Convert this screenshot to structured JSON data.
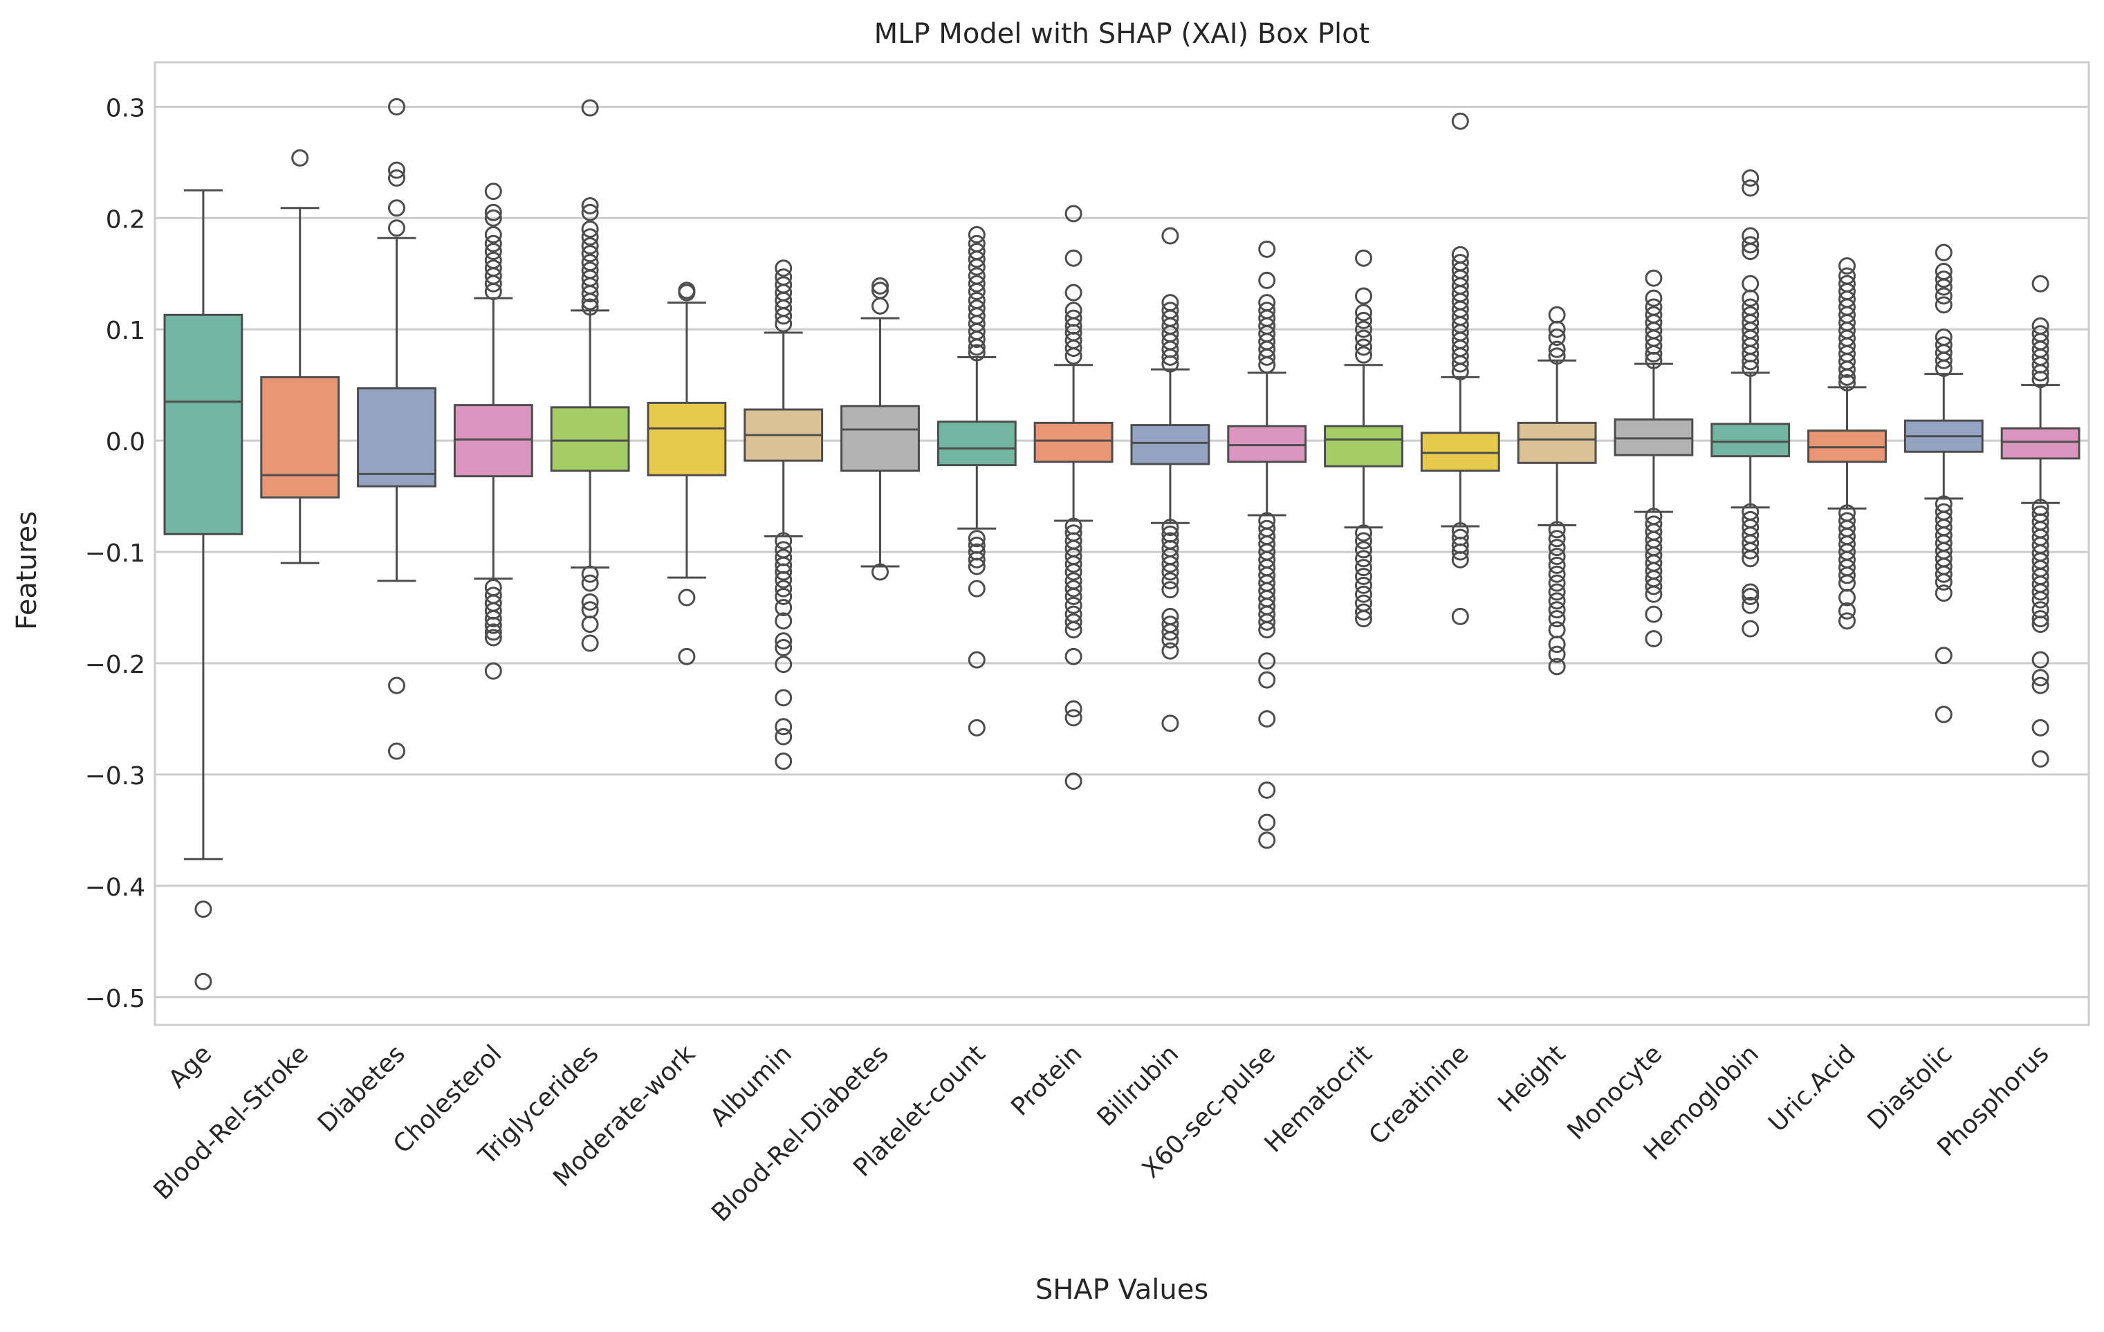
{
  "chart_data": {
    "type": "box",
    "title": "MLP Model with SHAP (XAI) Box Plot",
    "xlabel": "SHAP Values",
    "ylabel": "Features",
    "ylim": [
      -0.525,
      0.34
    ],
    "yticks": [
      0.3,
      0.2,
      0.1,
      0.0,
      -0.1,
      -0.2,
      -0.3,
      -0.4,
      -0.5
    ],
    "ytick_labels": [
      "0.3",
      "0.2",
      "0.1",
      "0.0",
      "−0.1",
      "−0.2",
      "−0.3",
      "−0.4",
      "−0.5"
    ],
    "grid": true,
    "legend": "none",
    "categories": [
      "Age",
      "Blood-Rel-Stroke",
      "Diabetes",
      "Cholesterol",
      "Triglycerides",
      "Moderate-work",
      "Albumin",
      "Blood-Rel-Diabetes",
      "Platelet-count",
      "Protein",
      "Bilirubin",
      "X60-sec-pulse",
      "Hematocrit",
      "Creatinine",
      "Height",
      "Monocyte",
      "Hemoglobin",
      "Uric.Acid",
      "Diastolic",
      "Phosphorus"
    ],
    "colors": [
      "#72b6a1",
      "#e99675",
      "#95a3c3",
      "#db96c0",
      "#a4cc65",
      "#e7ca4b",
      "#dbc296",
      "#b3b3b3",
      "#72b6a1",
      "#e99675",
      "#95a3c3",
      "#db96c0",
      "#a4cc65",
      "#e7ca4b",
      "#dbc296",
      "#b3b3b3",
      "#72b6a1",
      "#e99675",
      "#95a3c3",
      "#db96c0"
    ],
    "boxes": [
      {
        "q1": -0.084,
        "median": 0.035,
        "q3": 0.113,
        "whisker_low": -0.376,
        "whisker_high": 0.225,
        "outliers": [
          -0.421,
          -0.486
        ]
      },
      {
        "q1": -0.051,
        "median": -0.031,
        "q3": 0.057,
        "whisker_low": -0.11,
        "whisker_high": 0.209,
        "outliers": [
          0.254
        ]
      },
      {
        "q1": -0.041,
        "median": -0.03,
        "q3": 0.047,
        "whisker_low": -0.126,
        "whisker_high": 0.182,
        "outliers": [
          0.3,
          0.243,
          0.236,
          0.209,
          0.191,
          -0.22,
          -0.279
        ]
      },
      {
        "q1": -0.032,
        "median": 0.001,
        "q3": 0.032,
        "whisker_low": -0.124,
        "whisker_high": 0.128,
        "outliers": [
          0.224,
          0.205,
          0.2,
          0.185,
          0.177,
          0.17,
          0.162,
          0.155,
          0.148,
          0.141,
          0.134,
          -0.132,
          -0.139,
          -0.146,
          -0.153,
          -0.16,
          -0.166,
          -0.172,
          -0.177,
          -0.207
        ]
      },
      {
        "q1": -0.027,
        "median": 0.0,
        "q3": 0.03,
        "whisker_low": -0.114,
        "whisker_high": 0.117,
        "outliers": [
          0.299,
          0.211,
          0.205,
          0.19,
          0.183,
          0.175,
          0.168,
          0.16,
          0.153,
          0.146,
          0.139,
          0.132,
          0.125,
          0.12,
          -0.12,
          -0.128,
          -0.145,
          -0.152,
          -0.165,
          -0.182
        ]
      },
      {
        "q1": -0.031,
        "median": 0.011,
        "q3": 0.034,
        "whisker_low": -0.123,
        "whisker_high": 0.124,
        "outliers": [
          0.135,
          0.133,
          -0.141,
          -0.194
        ]
      },
      {
        "q1": -0.018,
        "median": 0.005,
        "q3": 0.028,
        "whisker_low": -0.086,
        "whisker_high": 0.097,
        "outliers": [
          0.155,
          0.147,
          0.14,
          0.133,
          0.126,
          0.119,
          0.112,
          0.105,
          -0.09,
          -0.098,
          -0.105,
          -0.112,
          -0.118,
          -0.125,
          -0.133,
          -0.14,
          -0.15,
          -0.162,
          -0.18,
          -0.186,
          -0.201,
          -0.231,
          -0.257,
          -0.266,
          -0.288
        ]
      },
      {
        "q1": -0.027,
        "median": 0.01,
        "q3": 0.031,
        "whisker_low": -0.113,
        "whisker_high": 0.11,
        "outliers": [
          0.139,
          0.135,
          0.121,
          -0.118
        ]
      },
      {
        "q1": -0.022,
        "median": -0.007,
        "q3": 0.017,
        "whisker_low": -0.079,
        "whisker_high": 0.075,
        "outliers": [
          0.185,
          0.177,
          0.17,
          0.163,
          0.156,
          0.148,
          0.141,
          0.134,
          0.126,
          0.119,
          0.112,
          0.105,
          0.098,
          0.091,
          0.084,
          0.079,
          -0.088,
          -0.094,
          -0.1,
          -0.107,
          -0.113,
          -0.133,
          -0.197,
          -0.258
        ]
      },
      {
        "q1": -0.019,
        "median": 0.0,
        "q3": 0.016,
        "whisker_low": -0.072,
        "whisker_high": 0.068,
        "outliers": [
          0.204,
          0.164,
          0.133,
          0.117,
          0.11,
          0.103,
          0.097,
          0.09,
          0.083,
          0.076,
          -0.077,
          -0.083,
          -0.09,
          -0.097,
          -0.104,
          -0.111,
          -0.118,
          -0.126,
          -0.133,
          -0.14,
          -0.148,
          -0.156,
          -0.163,
          -0.17,
          -0.194,
          -0.241,
          -0.249,
          -0.306
        ]
      },
      {
        "q1": -0.021,
        "median": -0.002,
        "q3": 0.014,
        "whisker_low": -0.074,
        "whisker_high": 0.064,
        "outliers": [
          0.184,
          0.124,
          0.117,
          0.11,
          0.103,
          0.096,
          0.089,
          0.082,
          0.075,
          0.069,
          -0.078,
          -0.084,
          -0.09,
          -0.097,
          -0.104,
          -0.111,
          -0.118,
          -0.126,
          -0.134,
          -0.158,
          -0.165,
          -0.172,
          -0.179,
          -0.189,
          -0.254
        ]
      },
      {
        "q1": -0.019,
        "median": -0.004,
        "q3": 0.013,
        "whisker_low": -0.067,
        "whisker_high": 0.061,
        "outliers": [
          0.172,
          0.144,
          0.124,
          0.117,
          0.11,
          0.103,
          0.096,
          0.089,
          0.082,
          0.075,
          0.068,
          -0.072,
          -0.079,
          -0.086,
          -0.093,
          -0.1,
          -0.107,
          -0.114,
          -0.121,
          -0.128,
          -0.135,
          -0.142,
          -0.149,
          -0.156,
          -0.163,
          -0.17,
          -0.198,
          -0.215,
          -0.25,
          -0.314,
          -0.343,
          -0.359
        ]
      },
      {
        "q1": -0.023,
        "median": 0.001,
        "q3": 0.013,
        "whisker_low": -0.078,
        "whisker_high": 0.068,
        "outliers": [
          0.164,
          0.13,
          0.115,
          0.108,
          0.1,
          0.092,
          0.084,
          0.077,
          -0.083,
          -0.09,
          -0.098,
          -0.106,
          -0.114,
          -0.122,
          -0.13,
          -0.138,
          -0.146,
          -0.154,
          -0.16
        ]
      },
      {
        "q1": -0.027,
        "median": -0.011,
        "q3": 0.007,
        "whisker_low": -0.077,
        "whisker_high": 0.057,
        "outliers": [
          0.287,
          0.167,
          0.16,
          0.153,
          0.146,
          0.139,
          0.132,
          0.125,
          0.118,
          0.111,
          0.104,
          0.097,
          0.09,
          0.083,
          0.076,
          0.069,
          0.062,
          -0.081,
          -0.087,
          -0.094,
          -0.1,
          -0.107,
          -0.158
        ]
      },
      {
        "q1": -0.02,
        "median": 0.001,
        "q3": 0.016,
        "whisker_low": -0.076,
        "whisker_high": 0.072,
        "outliers": [
          0.113,
          0.1,
          0.093,
          0.082,
          0.076,
          -0.08,
          -0.088,
          -0.096,
          -0.104,
          -0.112,
          -0.12,
          -0.128,
          -0.136,
          -0.144,
          -0.152,
          -0.16,
          -0.17,
          -0.183,
          -0.192,
          -0.203
        ]
      },
      {
        "q1": -0.013,
        "median": 0.002,
        "q3": 0.019,
        "whisker_low": -0.064,
        "whisker_high": 0.069,
        "outliers": [
          0.146,
          0.128,
          0.12,
          0.113,
          0.106,
          0.099,
          0.092,
          0.085,
          0.078,
          0.072,
          -0.068,
          -0.075,
          -0.082,
          -0.089,
          -0.096,
          -0.103,
          -0.11,
          -0.117,
          -0.124,
          -0.131,
          -0.138,
          -0.156,
          -0.178
        ]
      },
      {
        "q1": -0.014,
        "median": -0.001,
        "q3": 0.015,
        "whisker_low": -0.06,
        "whisker_high": 0.061,
        "outliers": [
          0.236,
          0.227,
          0.184,
          0.176,
          0.17,
          0.141,
          0.128,
          0.12,
          0.113,
          0.106,
          0.099,
          0.092,
          0.085,
          0.078,
          0.071,
          0.065,
          -0.064,
          -0.071,
          -0.078,
          -0.085,
          -0.092,
          -0.099,
          -0.106,
          -0.136,
          -0.14,
          -0.148,
          -0.169
        ]
      },
      {
        "q1": -0.019,
        "median": -0.006,
        "q3": 0.009,
        "whisker_low": -0.061,
        "whisker_high": 0.048,
        "outliers": [
          0.157,
          0.148,
          0.141,
          0.134,
          0.127,
          0.12,
          0.113,
          0.106,
          0.099,
          0.092,
          0.085,
          0.078,
          0.071,
          0.064,
          0.057,
          0.052,
          -0.065,
          -0.072,
          -0.079,
          -0.086,
          -0.093,
          -0.1,
          -0.107,
          -0.114,
          -0.121,
          -0.128,
          -0.141,
          -0.153,
          -0.162
        ]
      },
      {
        "q1": -0.01,
        "median": 0.004,
        "q3": 0.018,
        "whisker_low": -0.052,
        "whisker_high": 0.06,
        "outliers": [
          0.169,
          0.152,
          0.145,
          0.138,
          0.13,
          0.122,
          0.093,
          0.086,
          0.079,
          0.072,
          0.065,
          -0.057,
          -0.064,
          -0.071,
          -0.078,
          -0.085,
          -0.092,
          -0.099,
          -0.106,
          -0.113,
          -0.12,
          -0.127,
          -0.137,
          -0.193,
          -0.246
        ]
      },
      {
        "q1": -0.016,
        "median": -0.001,
        "q3": 0.011,
        "whisker_low": -0.056,
        "whisker_high": 0.05,
        "outliers": [
          0.141,
          0.103,
          0.096,
          0.089,
          0.082,
          0.075,
          0.068,
          0.061,
          0.055,
          -0.06,
          -0.066,
          -0.073,
          -0.08,
          -0.087,
          -0.094,
          -0.101,
          -0.108,
          -0.115,
          -0.122,
          -0.129,
          -0.136,
          -0.143,
          -0.152,
          -0.16,
          -0.165,
          -0.197,
          -0.213,
          -0.22,
          -0.258,
          -0.286
        ]
      }
    ]
  }
}
